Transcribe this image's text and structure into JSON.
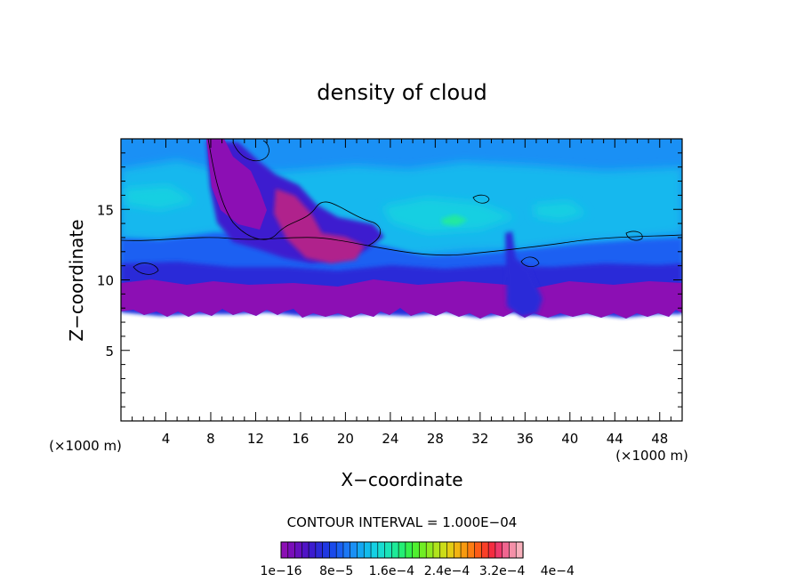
{
  "chart_data": {
    "type": "heatmap",
    "title": "density of cloud",
    "xlabel": "X−coordinate",
    "ylabel": "Z−coordinate",
    "x_unit": "(×1000 m)",
    "y_unit": "(×1000 m)",
    "xlim": [
      0,
      50
    ],
    "ylim": [
      0,
      20
    ],
    "x_ticks": [
      4,
      8,
      12,
      16,
      20,
      24,
      28,
      32,
      36,
      40,
      44,
      48
    ],
    "y_ticks": [
      5,
      10,
      15
    ],
    "contour_interval_text": "CONTOUR INTERVAL = 1.000E−04",
    "colorbar": {
      "labels": [
        "1e−16",
        "8e−5",
        "1.6e−4",
        "2.4e−4",
        "3.2e−4",
        "4e−4"
      ],
      "label_positions": [
        0,
        8,
        16,
        24,
        32,
        40
      ],
      "colors": [
        "#8c0fb4",
        "#7a0eb9",
        "#6610be",
        "#5014c6",
        "#3c1ccf",
        "#2c2ad8",
        "#2038e2",
        "#1a4aeb",
        "#1a60f2",
        "#1c78f5",
        "#1a90f5",
        "#14a8f2",
        "#12bcec",
        "#14d0e4",
        "#18dcd0",
        "#1ae4b8",
        "#1eea98",
        "#24ee74",
        "#34f04c",
        "#50f030",
        "#70ee24",
        "#90ea20",
        "#b0e41c",
        "#ccdc18",
        "#e4cc14",
        "#f2b412",
        "#f89a10",
        "#fc7c12",
        "#fc5c18",
        "#fa4028",
        "#f42c40",
        "#ee3a6c",
        "#f06690",
        "#f490a8",
        "#f8b0bc"
      ]
    },
    "cloud_base_km": 7.3,
    "cloud_layer_top_km": 12.5,
    "anvil_top_km": 19.8,
    "max_density_region": {
      "x_km": [
        8,
        23
      ],
      "z_km": [
        10,
        19.8
      ]
    },
    "cyan_band_z_km": [
      13,
      17
    ]
  }
}
